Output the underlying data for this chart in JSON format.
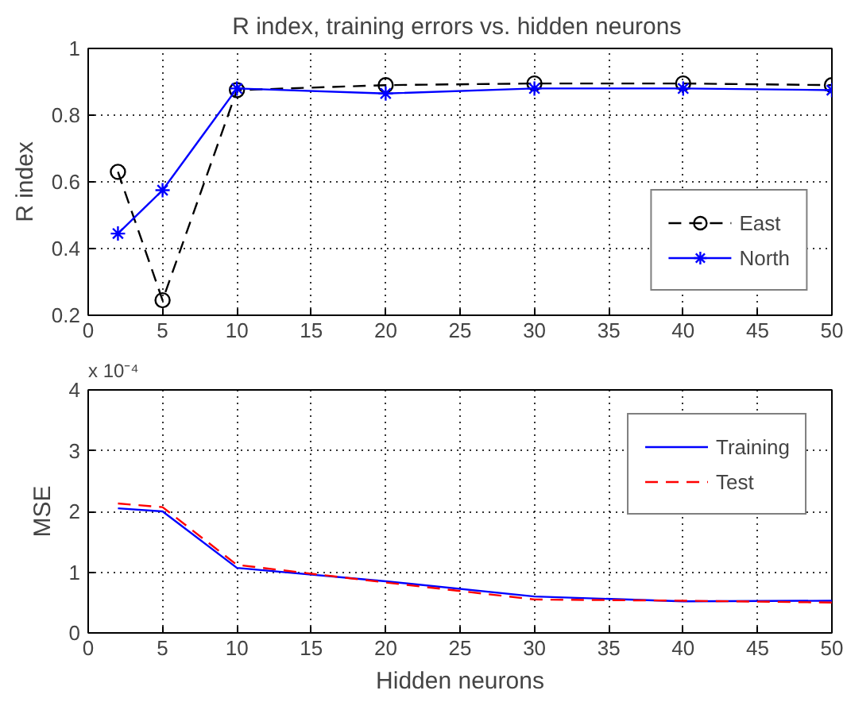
{
  "chart_data": [
    {
      "type": "line",
      "title": "R index, training errors  vs. hidden neurons",
      "ylabel": "R index",
      "x": [
        2,
        5,
        10,
        20,
        30,
        40,
        50
      ],
      "series": [
        {
          "name": "East",
          "color": "#000000",
          "line_style": "dashed",
          "marker": "circle",
          "values": [
            0.63,
            0.245,
            0.875,
            0.89,
            0.895,
            0.895,
            0.89
          ]
        },
        {
          "name": "North",
          "color": "#0000ff",
          "line_style": "solid",
          "marker": "cross",
          "values": [
            0.445,
            0.575,
            0.88,
            0.865,
            0.88,
            0.88,
            0.875
          ]
        }
      ],
      "xlim": [
        0,
        50
      ],
      "xticks": [
        0,
        5,
        10,
        15,
        20,
        25,
        30,
        35,
        40,
        45,
        50
      ],
      "ylim": [
        0.2,
        1
      ],
      "yticks": [
        0.2,
        0.4,
        0.6,
        0.8,
        1
      ],
      "grid": true,
      "legend": "bottom right"
    },
    {
      "type": "line",
      "xlabel": "Hidden neurons",
      "ylabel": "MSE",
      "annotations": [
        "x 10⁻⁴"
      ],
      "x": [
        2,
        5,
        10,
        20,
        30,
        40,
        50
      ],
      "series": [
        {
          "name": "Training",
          "color": "#0000ff",
          "line_style": "solid",
          "values": [
            2.05,
            2.0,
            1.07,
            0.85,
            0.6,
            0.52,
            0.53
          ]
        },
        {
          "name": "Test",
          "color": "#ff0000",
          "line_style": "dashed",
          "values": [
            2.13,
            2.07,
            1.12,
            0.83,
            0.55,
            0.53,
            0.5
          ]
        }
      ],
      "xlim": [
        0,
        50
      ],
      "xticks": [
        0,
        5,
        10,
        15,
        20,
        25,
        30,
        35,
        40,
        45,
        50
      ],
      "ylim": [
        0,
        4
      ],
      "yticks": [
        0,
        1,
        2,
        3,
        4
      ],
      "grid": true,
      "legend": "top right"
    }
  ]
}
